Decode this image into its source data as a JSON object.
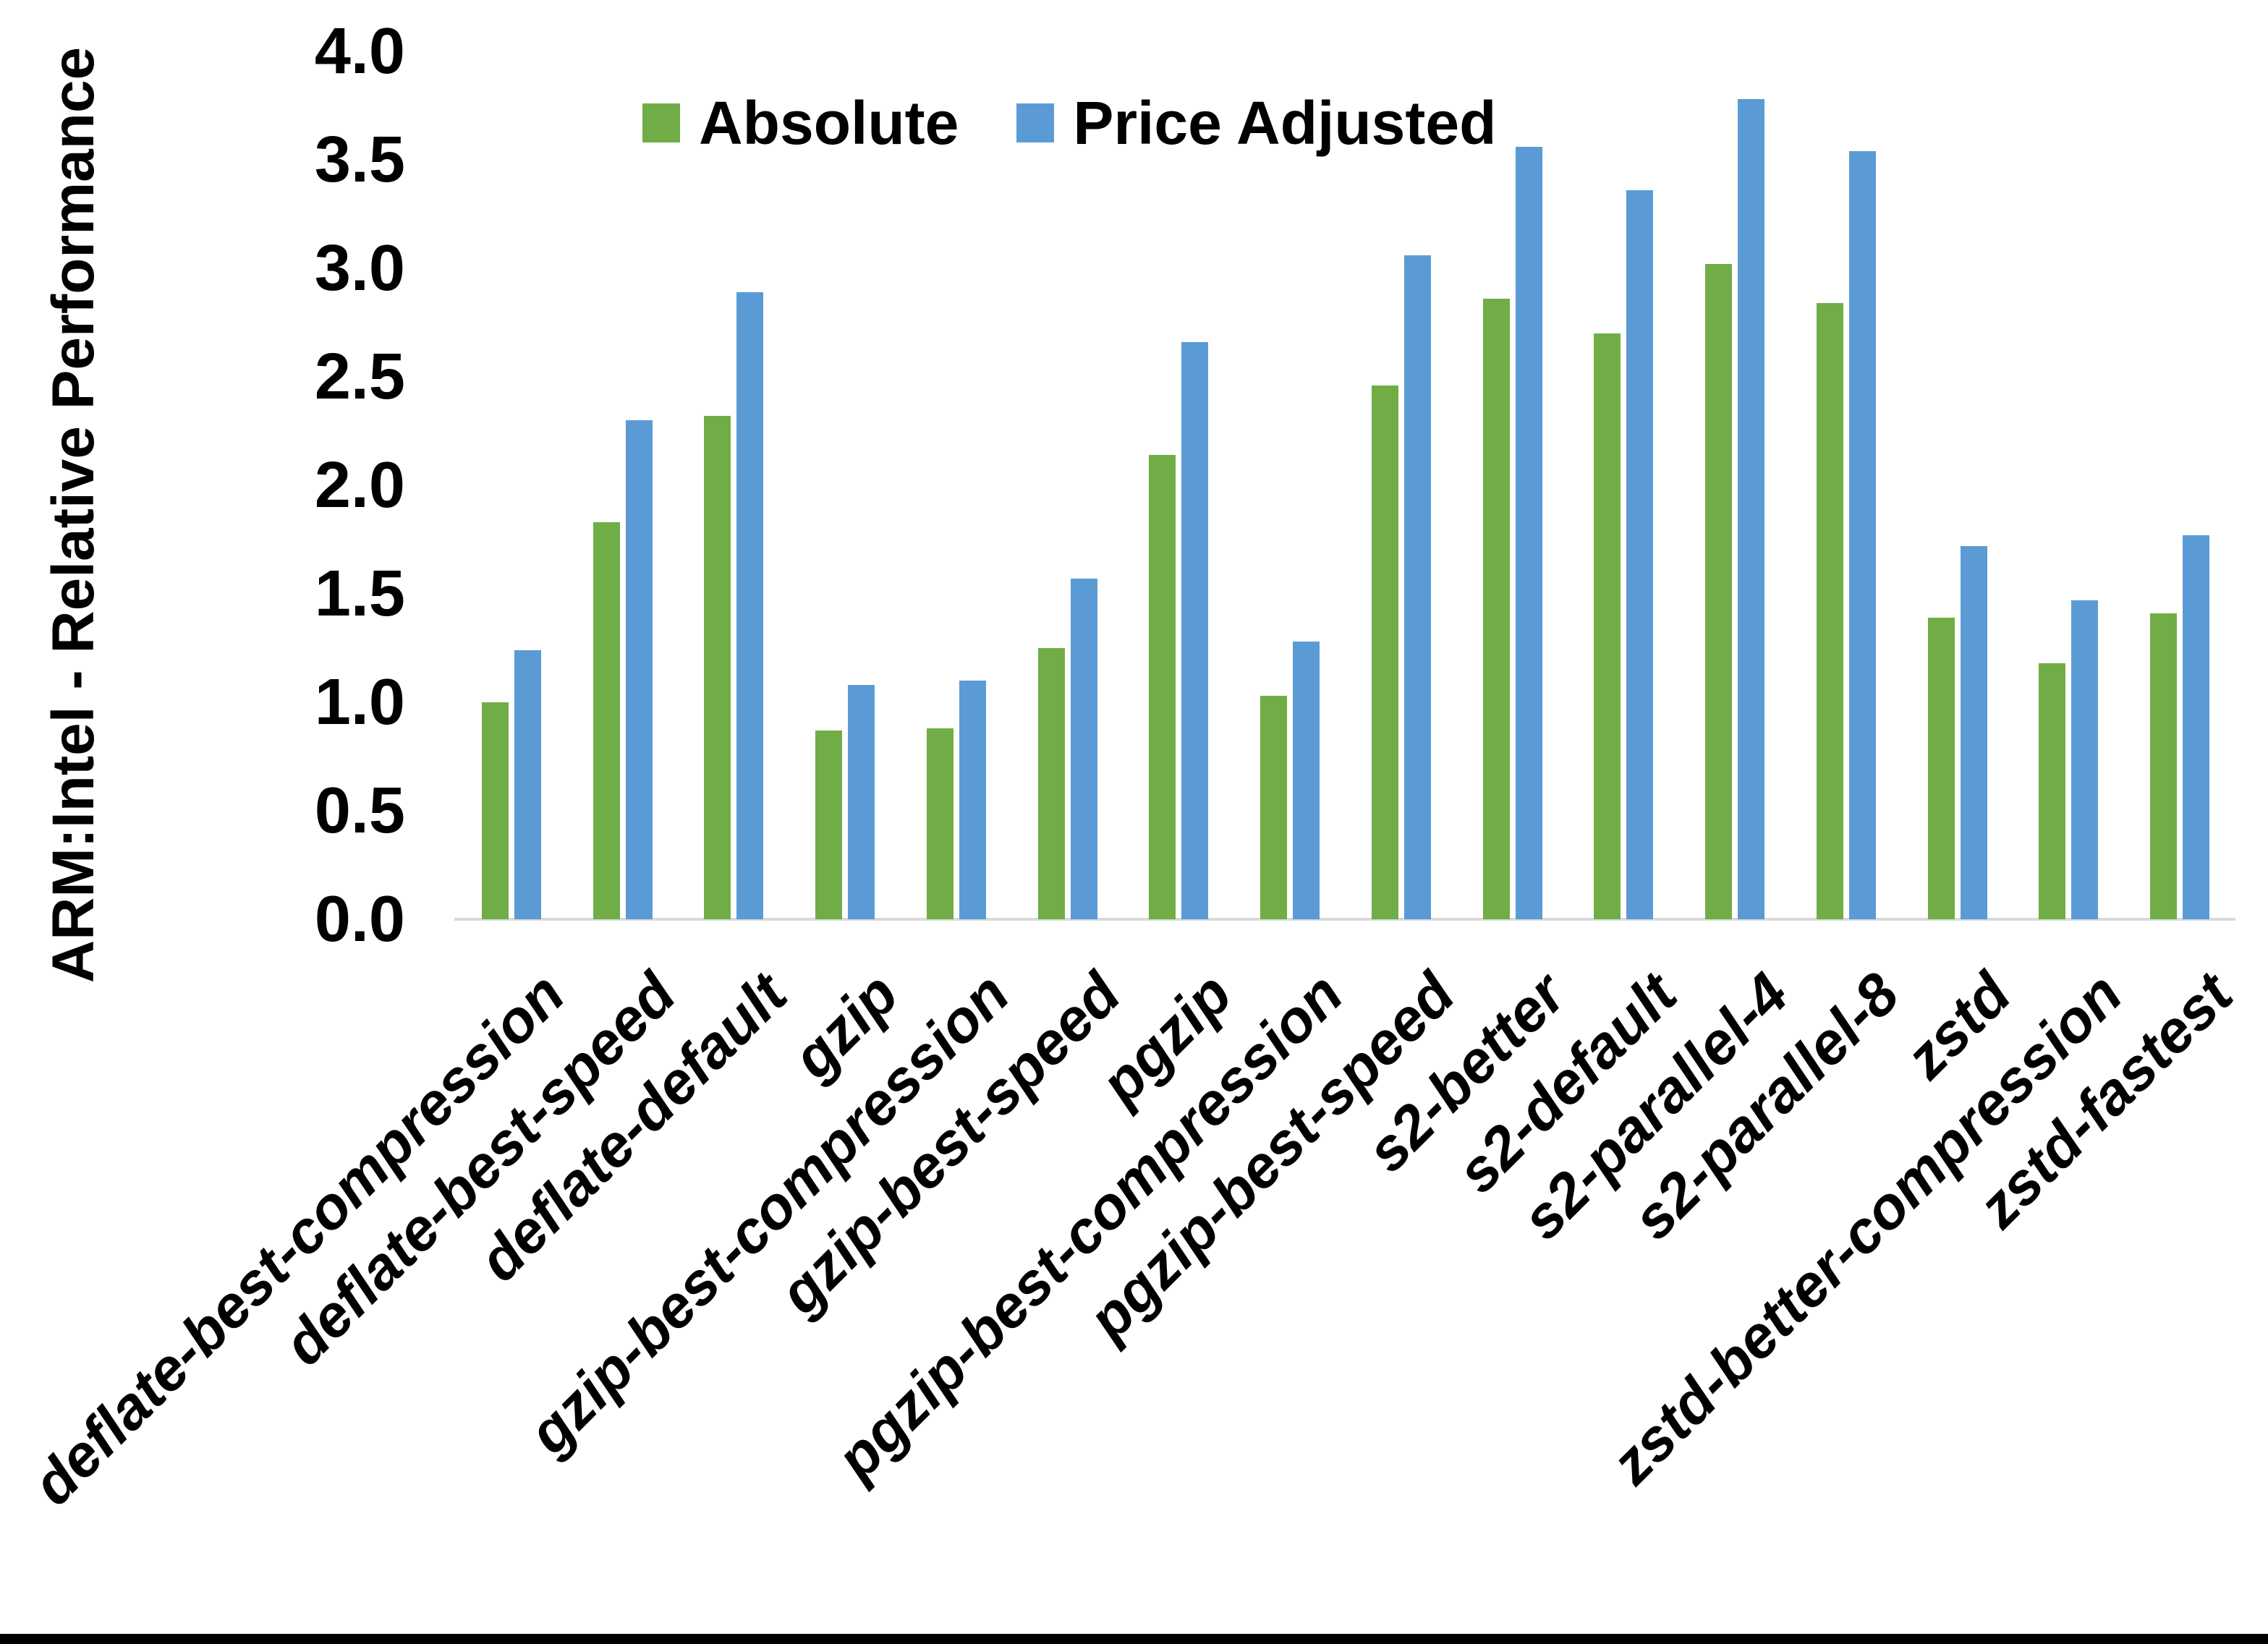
{
  "chart_data": {
    "type": "bar",
    "title": "",
    "ylabel": "ARM:Intel - Relative Performance",
    "xlabel": "",
    "ylim": [
      0.0,
      4.0
    ],
    "ytick_step": 0.5,
    "ytick_labels": [
      "0.0",
      "0.5",
      "1.0",
      "1.5",
      "2.0",
      "2.5",
      "3.0",
      "3.5",
      "4.0"
    ],
    "grid": false,
    "legend_position": "top-center",
    "categories": [
      "deflate-best-compression",
      "deflate-best-speed",
      "deflate-default",
      "gzip",
      "gzip-best-compression",
      "gzip-best-speed",
      "pgzip",
      "pgzip-best-compression",
      "pgzip-best-speed",
      "s2-better",
      "s2-default",
      "s2-parallel-4",
      "s2-parallel-8",
      "zstd",
      "zstd-better-compression",
      "zstd-fastest"
    ],
    "series": [
      {
        "name": "Absolute",
        "color": "#70AD47",
        "values": [
          1.0,
          1.83,
          2.32,
          0.87,
          0.88,
          1.25,
          2.14,
          1.03,
          2.46,
          2.86,
          2.7,
          3.02,
          2.84,
          1.39,
          1.18,
          1.41
        ]
      },
      {
        "name": "Price Adjusted",
        "color": "#5B9BD5",
        "values": [
          1.24,
          2.3,
          2.89,
          1.08,
          1.1,
          1.57,
          2.66,
          1.28,
          3.06,
          3.56,
          3.36,
          3.78,
          3.54,
          1.72,
          1.47,
          1.77
        ]
      }
    ]
  },
  "colors": {
    "axis_line": "#d9d9d9",
    "text": "#000000",
    "bottom_border": "#000000",
    "background": "#ffffff"
  }
}
